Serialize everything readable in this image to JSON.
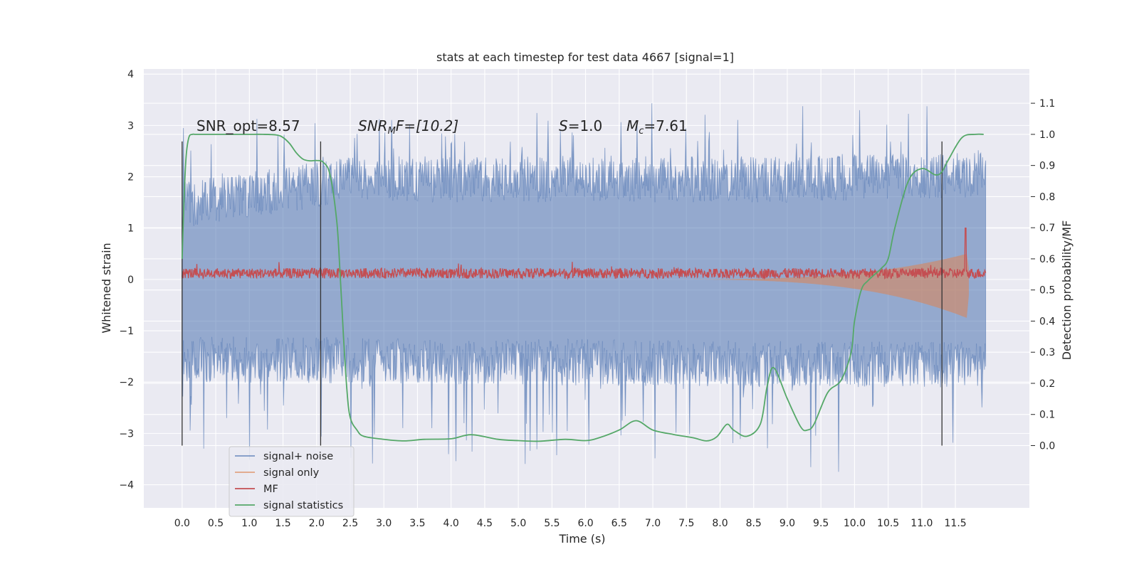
{
  "chart_data": {
    "type": "line",
    "title": "stats at each timestep for test data 4667 [signal=1]",
    "xlabel": "Time (s)",
    "ylabel": "Whitened strain",
    "y2label": "Detection probability/MF",
    "xlim": [
      -0.57,
      12.6
    ],
    "ylim": [
      -4.45,
      4.1
    ],
    "y2lim": [
      -0.2,
      1.21
    ],
    "grid": true,
    "x_ticks": [
      "0.0",
      "0.5",
      "1.0",
      "1.5",
      "2.0",
      "2.5",
      "3.0",
      "3.5",
      "4.0",
      "4.5",
      "5.0",
      "5.5",
      "6.0",
      "6.5",
      "7.0",
      "7.5",
      "8.0",
      "8.5",
      "9.0",
      "9.5",
      "10.0",
      "10.5",
      "11.0",
      "11.5"
    ],
    "y_ticks": [
      "4",
      "3",
      "2",
      "1",
      "0",
      "−1",
      "−2",
      "−3",
      "−4"
    ],
    "y2_ticks": [
      "1.1",
      "1.0",
      "0.9",
      "0.8",
      "0.7",
      "0.6",
      "0.5",
      "0.4",
      "0.3",
      "0.2",
      "0.1",
      "0.0"
    ],
    "annotations": {
      "snr_opt": "SNR_opt=8.57",
      "snr_mf_main": "SNR",
      "snr_mf_sub": "M",
      "snr_mf_rest": "F=[10.2]",
      "s_main": "S",
      "s_rest": "=1.0",
      "mc_main": "M",
      "mc_sub": "c",
      "mc_rest": "=7.61"
    },
    "vlines_x": [
      0.0,
      2.06,
      11.3
    ],
    "legend_position": "lower-left",
    "series": [
      {
        "name": "signal+ noise",
        "color": "#4c72b0",
        "style": "noisy-band",
        "x_range": [
          0.0,
          11.95
        ],
        "envelope_upper": [
          [
            0.0,
            1.9
          ],
          [
            2.5,
            2.4
          ],
          [
            9.0,
            2.4
          ],
          [
            11.95,
            2.5
          ]
        ],
        "envelope_lower": [
          [
            0.0,
            -2.0
          ],
          [
            9.0,
            -2.1
          ],
          [
            11.95,
            -2.1
          ]
        ],
        "max": 3.7,
        "min": -4.1
      },
      {
        "name": "signal only",
        "color": "#dd8452",
        "style": "chirp",
        "x_range": [
          7.0,
          11.7
        ],
        "peak": 0.5,
        "merger_x": 11.67
      },
      {
        "name": "MF",
        "color": "#c44e52",
        "style": "noisy-narrow",
        "x_range": [
          0.0,
          11.95
        ],
        "center": 0.12,
        "spread": 0.1,
        "spike_x": 11.65,
        "spike_value": 1.0
      },
      {
        "name": "signal statistics",
        "color": "#55a868",
        "axis": "right",
        "x": [
          0.0,
          0.03,
          0.06,
          0.1,
          0.15,
          0.2,
          0.3,
          0.5,
          0.8,
          1.0,
          1.2,
          1.4,
          1.5,
          1.6,
          1.7,
          1.8,
          1.9,
          2.0,
          2.1,
          2.2,
          2.3,
          2.35,
          2.4,
          2.45,
          2.5,
          2.6,
          2.7,
          3.0,
          3.3,
          3.6,
          4.0,
          4.3,
          4.7,
          5.0,
          5.3,
          5.7,
          6.0,
          6.2,
          6.5,
          6.75,
          7.0,
          7.3,
          7.6,
          7.8,
          7.95,
          8.1,
          8.2,
          8.4,
          8.6,
          8.7,
          8.8,
          9.0,
          9.2,
          9.3,
          9.4,
          9.6,
          9.8,
          9.95,
          10.0,
          10.1,
          10.2,
          10.3,
          10.4,
          10.5,
          10.6,
          10.8,
          11.0,
          11.2,
          11.3,
          11.4,
          11.6,
          11.8,
          11.92
        ],
        "y": [
          0.6,
          0.8,
          0.93,
          0.99,
          1.0,
          1.0,
          1.0,
          1.0,
          1.0,
          1.0,
          1.0,
          0.998,
          0.99,
          0.97,
          0.94,
          0.92,
          0.915,
          0.916,
          0.91,
          0.87,
          0.72,
          0.55,
          0.35,
          0.18,
          0.09,
          0.05,
          0.03,
          0.02,
          0.015,
          0.02,
          0.022,
          0.035,
          0.02,
          0.016,
          0.014,
          0.02,
          0.016,
          0.025,
          0.05,
          0.08,
          0.05,
          0.036,
          0.025,
          0.015,
          0.028,
          0.068,
          0.05,
          0.03,
          0.07,
          0.19,
          0.25,
          0.15,
          0.06,
          0.05,
          0.07,
          0.17,
          0.21,
          0.3,
          0.4,
          0.5,
          0.53,
          0.55,
          0.57,
          0.6,
          0.7,
          0.85,
          0.89,
          0.87,
          0.88,
          0.92,
          0.99,
          1.0,
          1.0
        ]
      }
    ]
  }
}
